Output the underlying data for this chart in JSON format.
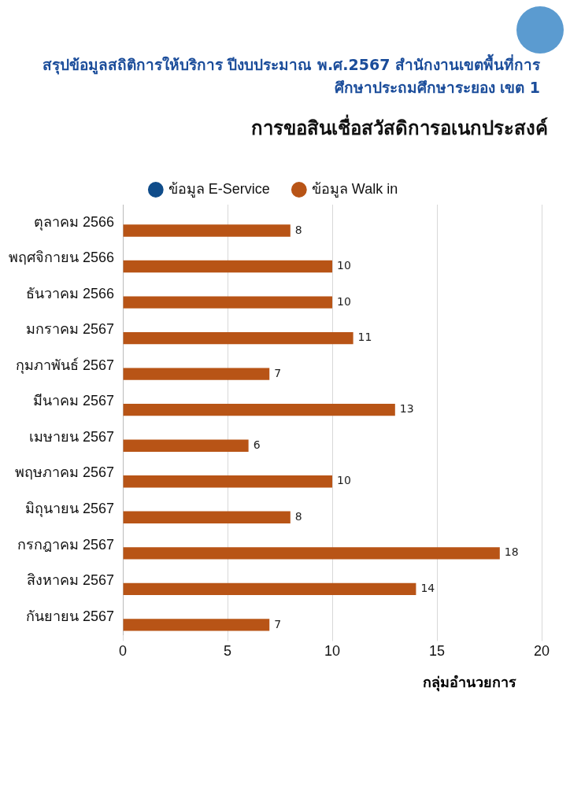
{
  "chart_data": {
    "type": "bar",
    "orientation": "horizontal",
    "title": "การขอสินเชื่อสวัสดิการอเนกประสงค์",
    "subtitle": "สรุปข้อมูลสถิติการให้บริการ ปีงบประมาณ พ.ศ.2567 สำนักงานเขตพื้นที่การศึกษาประถมศึกษาระยอง เขต 1",
    "categories": [
      "ตุลาคม 2566",
      "พฤศจิกายน 2566",
      "ธันวาคม 2566",
      "มกราคม 2567",
      "กุมภาพันธ์ 2567",
      "มีนาคม 2567",
      "เมษายน 2567",
      "พฤษภาคม 2567",
      "มิถุนายน 2567",
      "กรกฎาคม 2567",
      "สิงหาคม 2567",
      "กันยายน 2567"
    ],
    "series": [
      {
        "name": "ข้อมูล E-Service",
        "color": "#0f4c8a",
        "values": [
          null,
          null,
          null,
          null,
          null,
          null,
          null,
          null,
          null,
          null,
          null,
          null
        ]
      },
      {
        "name": "ข้อมูล Walk in",
        "color": "#b85416",
        "values": [
          8,
          10,
          10,
          11,
          7,
          13,
          6,
          10,
          8,
          18,
          14,
          7
        ]
      }
    ],
    "xlim": [
      0,
      20
    ],
    "xticks": [
      0,
      5,
      10,
      15,
      20
    ],
    "grid": "x",
    "legend": "top",
    "data_labels": true,
    "annotations": [
      "กลุ่มอำนวยการ"
    ]
  }
}
